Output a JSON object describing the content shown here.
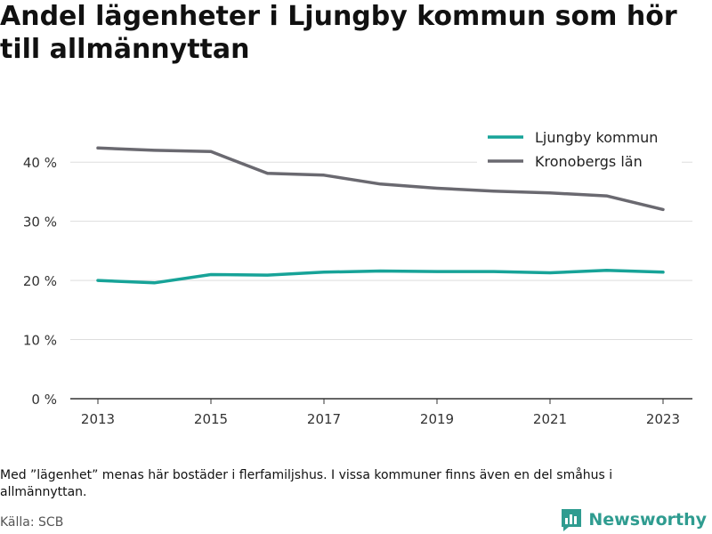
{
  "title": "Andel lägenheter i Ljungby kommun som hör till allmännyttan",
  "note": "Med ”lägenhet” menas här bostäder i flerfamiljshus. I vissa kommuner finns även en del småhus i allmännyttan.",
  "source": "Källa: SCB",
  "brand": {
    "name": "Newsworthy",
    "icon": "newsworthy-logo-icon"
  },
  "colors": {
    "ljungby": "#17a398",
    "kronoberg": "#6a6970",
    "grid": "#dddddd",
    "axis": "#333333"
  },
  "chart_data": {
    "type": "line",
    "x": [
      2013,
      2014,
      2015,
      2016,
      2017,
      2018,
      2019,
      2020,
      2021,
      2022,
      2023
    ],
    "xticks": [
      "2013",
      "2015",
      "2017",
      "2019",
      "2021",
      "2023"
    ],
    "yticks": [
      "0 %",
      "10 %",
      "20 %",
      "30 %",
      "40 %"
    ],
    "ylim": [
      0,
      45
    ],
    "ylabel": "",
    "xlabel": "",
    "grid": true,
    "legend_position": "top-right",
    "series": [
      {
        "name": "Ljungby kommun",
        "values": [
          20.0,
          19.6,
          21.0,
          20.9,
          21.4,
          21.6,
          21.5,
          21.5,
          21.3,
          21.7,
          21.4
        ]
      },
      {
        "name": "Kronobergs län",
        "values": [
          42.4,
          42.0,
          41.8,
          38.1,
          37.8,
          36.3,
          35.6,
          35.1,
          34.8,
          34.3,
          32.0
        ]
      }
    ]
  }
}
